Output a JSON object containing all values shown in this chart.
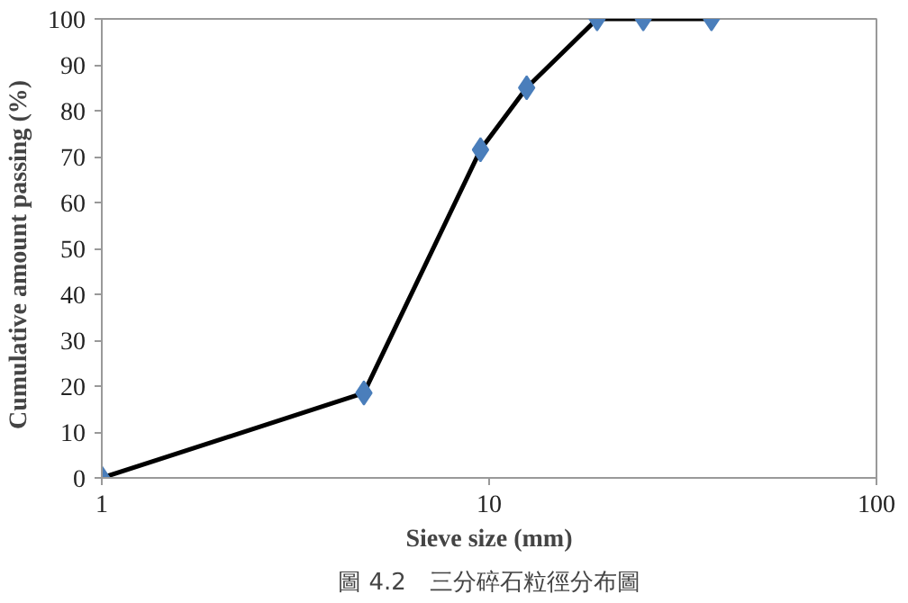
{
  "chart_data": {
    "type": "line",
    "xlabel": "Sieve size (mm)",
    "ylabel": "Cumulative  amount  passing (%)",
    "x": [
      1,
      4.75,
      9.5,
      12.5,
      19,
      25,
      37.5
    ],
    "series": [
      {
        "color": "#4a7ebb",
        "values": [
          0,
          18.5,
          71.5,
          85,
          100,
          100,
          100
        ]
      }
    ],
    "log": "x",
    "xlim": [
      1,
      100
    ],
    "xticks": [
      1,
      10,
      100
    ],
    "ylim": [
      0,
      100
    ],
    "yticks": [
      0,
      10,
      20,
      30,
      40,
      50,
      60,
      70,
      80,
      90,
      100
    ],
    "grid": false,
    "marker": "diamond",
    "line_style": "solid",
    "annotations": [
      "圖 4.2　三分碎石粒徑分布圖"
    ]
  }
}
